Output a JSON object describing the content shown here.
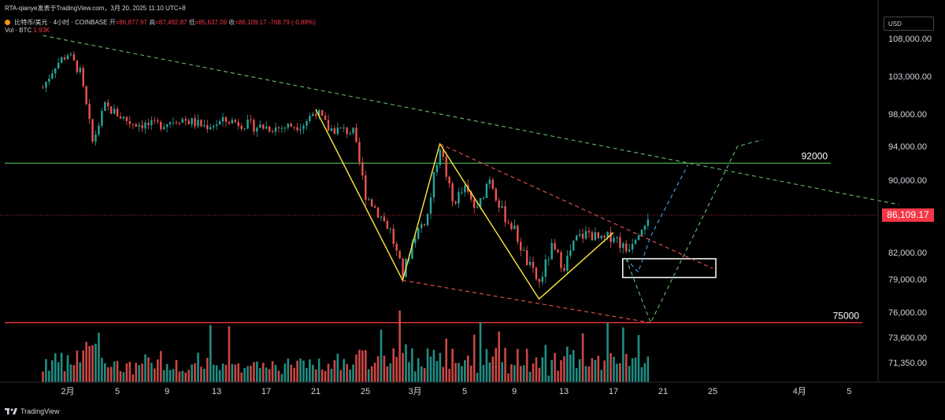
{
  "header": {
    "publisher": "RTA-qianye发表于TradingView.com，3月 20, 2025 11:10 UTC+8",
    "symbol": "比特币/美元 · 4小时 · COINBASE",
    "open_label": "开",
    "open": "=86,877.97",
    "high_label": "高",
    "high": "=87,492.87",
    "low_label": "低",
    "low": "=85,637.09",
    "close_label": "收",
    "close": "=86,109.17",
    "change": "-768.79 (-0.88%)",
    "vol_label": "Vol · BTC",
    "vol_value": "1.93K"
  },
  "currency": "USD",
  "current_price_label": "86,109.17",
  "footer_brand": "TradingView",
  "chart_data": {
    "type": "candlestick",
    "y_axis_ticks": [
      "108,000.00",
      "103,000.00",
      "98,000.00",
      "94,000.00",
      "90,000.00",
      "82,000.00",
      "79,000.00",
      "76,000.00",
      "73,600.00",
      "71,350.00"
    ],
    "y_axis_values": [
      108000,
      103000,
      98000,
      94000,
      90000,
      82000,
      79000,
      76000,
      73600,
      71350
    ],
    "x_axis_ticks": [
      "2月",
      "5",
      "9",
      "13",
      "17",
      "21",
      "25",
      "3月",
      "5",
      "9",
      "13",
      "17",
      "21",
      "25",
      "4月",
      "5"
    ],
    "x_axis_dates": [
      "2025-02-01",
      "2025-02-05",
      "2025-02-09",
      "2025-02-13",
      "2025-02-17",
      "2025-02-21",
      "2025-02-25",
      "2025-03-01",
      "2025-03-05",
      "2025-03-09",
      "2025-03-13",
      "2025-03-17",
      "2025-03-21",
      "2025-03-25",
      "2025-04-01",
      "2025-04-05"
    ],
    "current_price": 86109.17,
    "horizontal_levels": [
      {
        "label": "92000",
        "value": 92000,
        "color": "#4caf50"
      },
      {
        "label": "75000",
        "value": 75000,
        "color": "#f23645"
      }
    ],
    "price_path": [
      [
        "2025-01-30",
        101500
      ],
      [
        "2025-01-31",
        104500
      ],
      [
        "2025-02-01",
        106000
      ],
      [
        "2025-02-02",
        103500
      ],
      [
        "2025-02-03",
        94500
      ],
      [
        "2025-02-04",
        99000
      ],
      [
        "2025-02-05",
        98000
      ],
      [
        "2025-02-06",
        97000
      ],
      [
        "2025-02-08",
        96500
      ],
      [
        "2025-02-10",
        97500
      ],
      [
        "2025-02-12",
        96500
      ],
      [
        "2025-02-14",
        97200
      ],
      [
        "2025-02-16",
        96500
      ],
      [
        "2025-02-18",
        96300
      ],
      [
        "2025-02-20",
        96800
      ],
      [
        "2025-02-21",
        98500
      ],
      [
        "2025-02-22",
        96200
      ],
      [
        "2025-02-24",
        95800
      ],
      [
        "2025-02-25",
        88500
      ],
      [
        "2025-02-26",
        86500
      ],
      [
        "2025-02-27",
        84500
      ],
      [
        "2025-02-28",
        79500
      ],
      [
        "2025-03-01",
        84000
      ],
      [
        "2025-03-02",
        86000
      ],
      [
        "2025-03-03",
        94200
      ],
      [
        "2025-03-04",
        87500
      ],
      [
        "2025-03-05",
        89000
      ],
      [
        "2025-03-06",
        86500
      ],
      [
        "2025-03-07",
        90500
      ],
      [
        "2025-03-08",
        86500
      ],
      [
        "2025-03-09",
        84500
      ],
      [
        "2025-03-10",
        81000
      ],
      [
        "2025-03-11",
        78500
      ],
      [
        "2025-03-12",
        82500
      ],
      [
        "2025-03-13",
        80500
      ],
      [
        "2025-03-14",
        83500
      ],
      [
        "2025-03-15",
        84200
      ],
      [
        "2025-03-16",
        83200
      ],
      [
        "2025-03-17",
        84000
      ],
      [
        "2025-03-18",
        82200
      ],
      [
        "2025-03-19",
        84500
      ],
      [
        "2025-03-20",
        86500
      ]
    ],
    "pattern_lines": [
      {
        "color": "#ffeb3b",
        "style": "solid",
        "points": [
          [
            "2025-02-21",
            98600
          ],
          [
            "2025-02-28",
            78900
          ],
          [
            "2025-03-03",
            94300
          ],
          [
            "2025-03-11",
            77200
          ],
          [
            "2025-03-17",
            84200
          ]
        ]
      },
      {
        "color": "#66bb6a",
        "style": "dashed",
        "points": [
          [
            "2025-01-30",
            108400
          ],
          [
            "2025-04-09",
            87300
          ]
        ]
      },
      {
        "color": "#ef5350",
        "style": "dashed",
        "points": [
          [
            "2025-03-03",
            94300
          ],
          [
            "2025-03-25",
            80200
          ]
        ]
      },
      {
        "color": "#ef5350",
        "style": "dashed",
        "points": [
          [
            "2025-02-28",
            78900
          ],
          [
            "2025-03-20",
            75000
          ]
        ]
      },
      {
        "color": "#42a5f5",
        "style": "dashed",
        "points": [
          [
            "2025-03-18",
            81300
          ],
          [
            "2025-03-19",
            79800
          ],
          [
            "2025-03-20",
            83800
          ],
          [
            "2025-03-23",
            91800
          ]
        ]
      },
      {
        "color": "#66bb6a",
        "style": "dashed",
        "points": [
          [
            "2025-03-18",
            81300
          ],
          [
            "2025-03-20",
            75000
          ],
          [
            "2025-03-27",
            94000
          ],
          [
            "2025-03-29",
            94800
          ]
        ]
      }
    ],
    "target_box": {
      "x_from": "2025-03-18",
      "x_to": "2025-03-25",
      "y_from": 79200,
      "y_to": 81300
    }
  }
}
